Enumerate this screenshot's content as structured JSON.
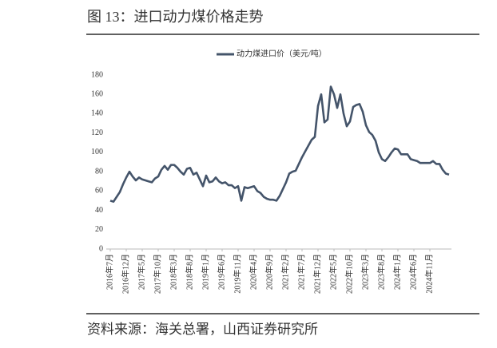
{
  "title": "图 13：进口动力煤价格走势",
  "source": "资料来源：海关总署，山西证券研究所",
  "chart_data": {
    "type": "line",
    "categories": [
      "2016年7月",
      null,
      null,
      null,
      null,
      "2016年12月",
      null,
      null,
      null,
      null,
      "2017年5月",
      null,
      null,
      null,
      null,
      "2017年10月",
      null,
      null,
      null,
      null,
      "2018年3月",
      null,
      null,
      null,
      null,
      "2018年8月",
      null,
      null,
      null,
      null,
      "2019年1月",
      null,
      null,
      null,
      null,
      "2019年6月",
      null,
      null,
      null,
      null,
      "2019年11月",
      null,
      null,
      null,
      null,
      "2020年4月",
      null,
      null,
      null,
      null,
      "2020年9月",
      null,
      null,
      null,
      null,
      "2021年2月",
      null,
      null,
      null,
      null,
      "2021年7月",
      null,
      null,
      null,
      null,
      "2021年12月",
      null,
      null,
      null,
      null,
      "2022年5月",
      null,
      null,
      null,
      null,
      "2022年10月",
      null,
      null,
      null,
      null,
      "2023年3月",
      null,
      null,
      null,
      null,
      "2023年8月",
      null,
      null,
      null,
      null,
      "2024年1月",
      null,
      null,
      null,
      null,
      "2024年6月",
      null,
      null,
      null,
      null,
      "2024年11月",
      null,
      null,
      null,
      null,
      null,
      null
    ],
    "series": [
      {
        "name": "动力煤进口价（美元/吨）",
        "color": "#44546a",
        "values": [
          50,
          49,
          54,
          59,
          67,
          74,
          80,
          75,
          71,
          74,
          72,
          71,
          70,
          69,
          73,
          75,
          82,
          86,
          82,
          87,
          87,
          84,
          80,
          77,
          83,
          84,
          77,
          79,
          72,
          65,
          76,
          69,
          70,
          74,
          70,
          68,
          69,
          66,
          66,
          63,
          65,
          50,
          64,
          63,
          64,
          65,
          60,
          58,
          54,
          52,
          51,
          51,
          50,
          55,
          62,
          69,
          78,
          80,
          81,
          88,
          95,
          101,
          107,
          113,
          116,
          148,
          160,
          131,
          134,
          168,
          160,
          146,
          160,
          140,
          127,
          132,
          147,
          149,
          150,
          142,
          128,
          121,
          118,
          112,
          100,
          93,
          91,
          95,
          100,
          104,
          103,
          98,
          98,
          98,
          93,
          92,
          91,
          89,
          89,
          89,
          89,
          91,
          88,
          88,
          82,
          78,
          77
        ]
      }
    ],
    "ylim": [
      0,
      180
    ],
    "yticks": [
      0,
      20,
      40,
      60,
      80,
      100,
      120,
      140,
      160,
      180
    ]
  }
}
